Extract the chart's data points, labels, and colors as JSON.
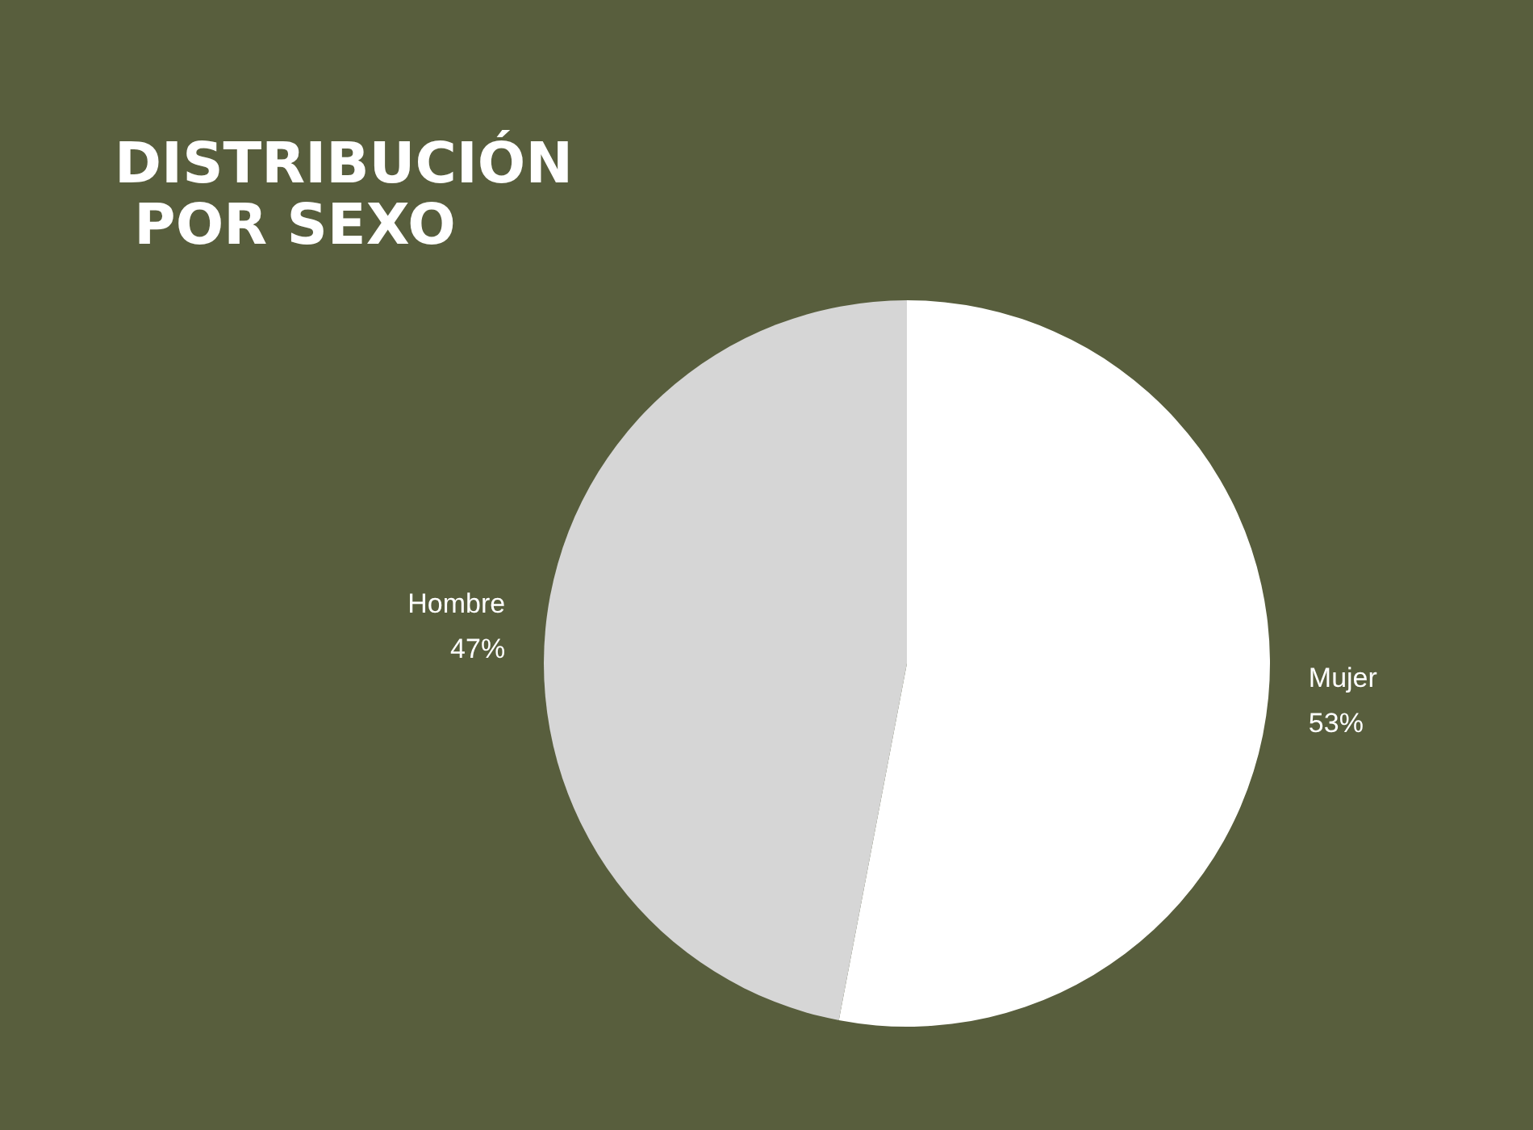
{
  "chart_data": {
    "type": "pie",
    "title": "DISTRIBUCIÓN POR SEXO",
    "categories": [
      "Mujer",
      "Hombre"
    ],
    "values": [
      53,
      47
    ],
    "colors": [
      "#ffffff",
      "#d6d6d6"
    ],
    "value_labels": [
      "53%",
      "47%"
    ],
    "legend": false
  }
}
